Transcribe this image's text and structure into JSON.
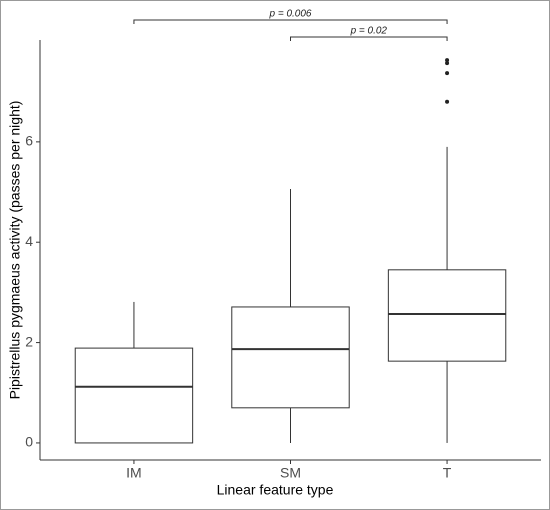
{
  "chart_data": {
    "type": "box",
    "xlabel": "Linear feature type",
    "ylabel": "Pipistrellus pygmaeus activity (passes per night)",
    "categories": [
      "IM",
      "SM",
      "T"
    ],
    "boxes": [
      {
        "whislo": 0,
        "q1": 0,
        "med": 1.12,
        "q3": 1.89,
        "whishi": 2.81,
        "fliers": []
      },
      {
        "whislo": 0,
        "q1": 0.7,
        "med": 1.87,
        "q3": 2.71,
        "whishi": 5.06,
        "fliers": []
      },
      {
        "whislo": 0,
        "q1": 1.63,
        "med": 2.57,
        "q3": 3.45,
        "whishi": 5.9,
        "fliers": [
          6.8,
          7.37,
          7.57,
          7.63
        ]
      }
    ],
    "ylim": [
      -0.34,
      8.03
    ],
    "yticks": [
      0,
      2,
      4,
      6
    ],
    "annotations": [
      "p = 0.006",
      "p = 0.02"
    ]
  }
}
